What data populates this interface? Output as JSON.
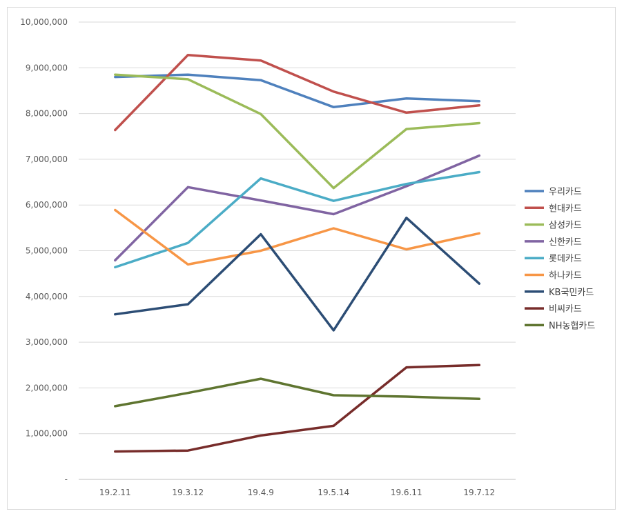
{
  "chart_data": {
    "type": "line",
    "title": "",
    "xlabel": "",
    "ylabel": "",
    "categories": [
      "19.2.11",
      "19.3.12",
      "19.4.9",
      "19.5.14",
      "19.6.11",
      "19.7.12"
    ],
    "ylim": [
      0,
      10000000
    ],
    "yticks": [
      0,
      1000000,
      2000000,
      3000000,
      4000000,
      5000000,
      6000000,
      7000000,
      8000000,
      9000000,
      10000000
    ],
    "ytick_labels": [
      "-",
      "1,000,000",
      "2,000,000",
      "3,000,000",
      "4,000,000",
      "5,000,000",
      "6,000,000",
      "7,000,000",
      "8,000,000",
      "9,000,000",
      "10,000,000"
    ],
    "grid": true,
    "legend_position": "right",
    "series": [
      {
        "name": "우리카드",
        "color": "#4f81bd",
        "values": [
          8800000,
          8850000,
          8730000,
          8140000,
          8330000,
          8270000
        ]
      },
      {
        "name": "현대카드",
        "color": "#c0504d",
        "values": [
          7640000,
          9280000,
          9160000,
          8480000,
          8020000,
          8180000
        ]
      },
      {
        "name": "삼성카드",
        "color": "#9bbb59",
        "values": [
          8850000,
          8750000,
          7990000,
          6370000,
          7660000,
          7790000
        ]
      },
      {
        "name": "신한카드",
        "color": "#8064a2",
        "values": [
          4790000,
          6390000,
          6100000,
          5800000,
          6410000,
          7080000
        ]
      },
      {
        "name": "롯데카드",
        "color": "#4bacc6",
        "values": [
          4640000,
          5170000,
          6580000,
          6090000,
          6460000,
          6720000
        ]
      },
      {
        "name": "하나카드",
        "color": "#f79646",
        "values": [
          5890000,
          4700000,
          5000000,
          5490000,
          5030000,
          5380000
        ]
      },
      {
        "name": "KB국민카드",
        "color": "#2c4d75",
        "values": [
          3610000,
          3830000,
          5360000,
          3260000,
          5720000,
          4280000
        ]
      },
      {
        "name": "비씨카드",
        "color": "#772c2a",
        "values": [
          610000,
          630000,
          960000,
          1170000,
          2450000,
          2500000
        ]
      },
      {
        "name": "NH농협카드",
        "color": "#5f7530",
        "values": [
          1600000,
          1890000,
          2200000,
          1840000,
          1810000,
          1760000
        ]
      }
    ]
  }
}
